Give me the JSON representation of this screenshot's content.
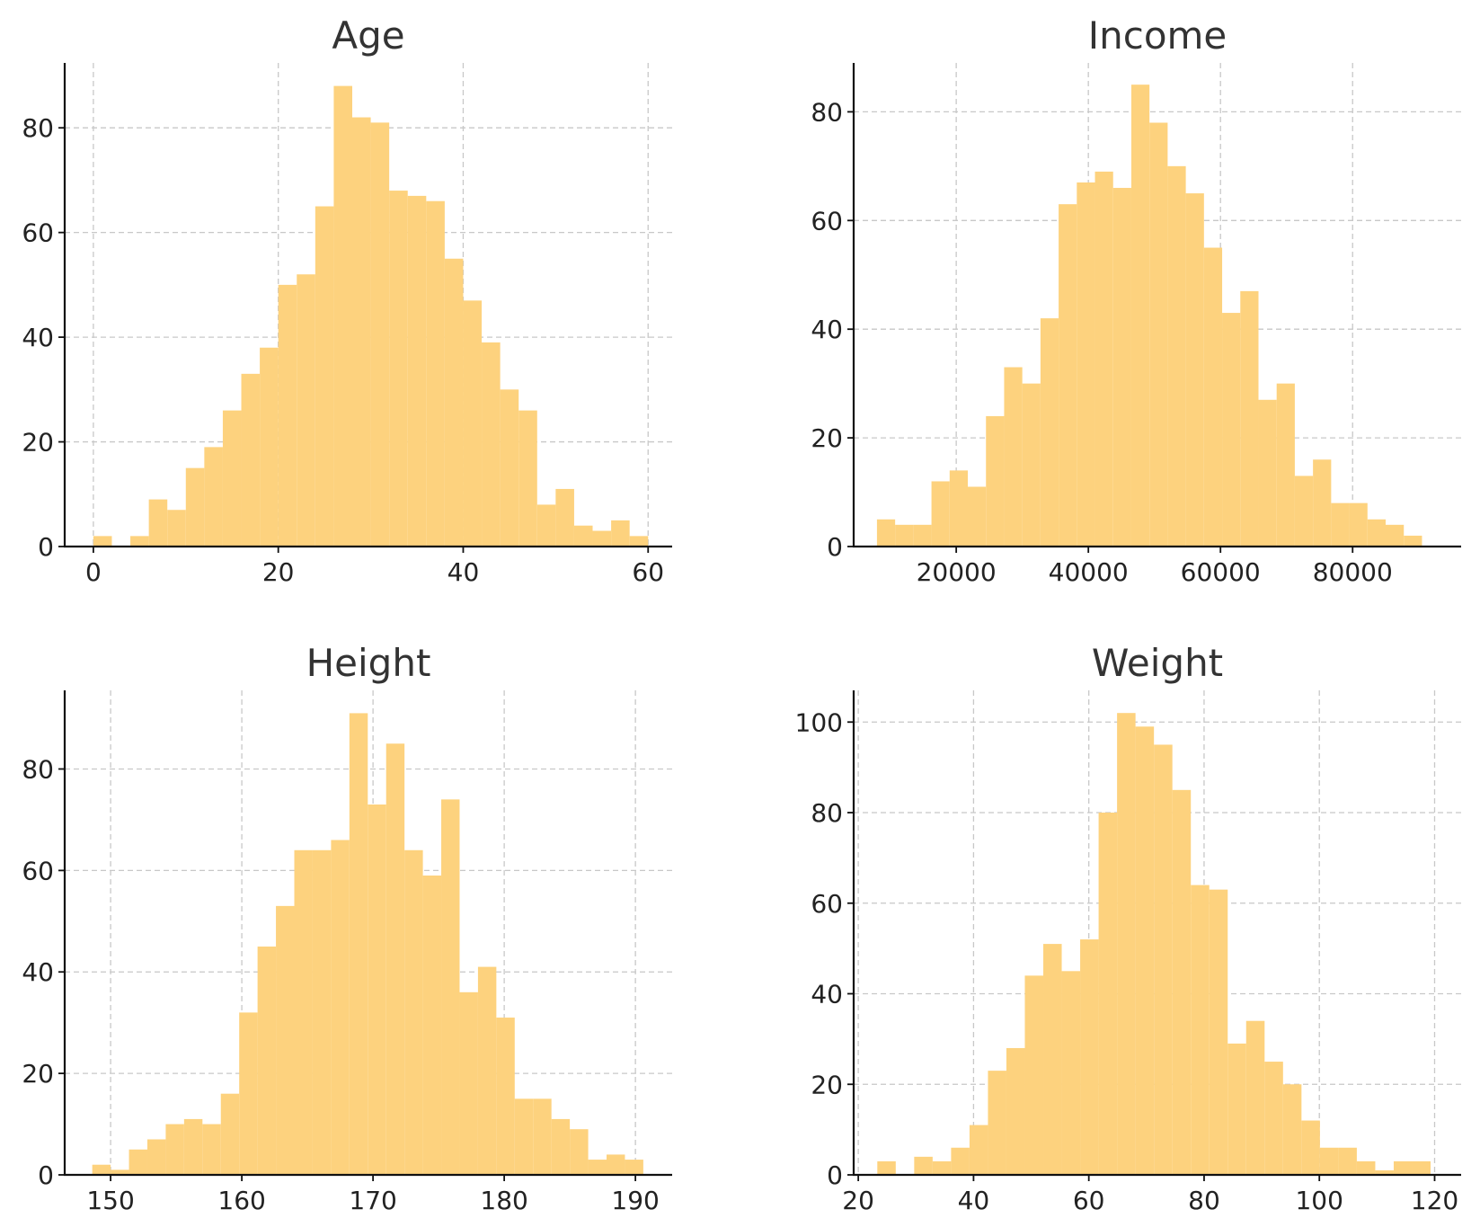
{
  "chart_data": [
    {
      "type": "bar",
      "title": "Age",
      "xlabel": "",
      "ylabel": "",
      "xlim": [
        -3.1,
        62.6
      ],
      "ylim": [
        0,
        92.4
      ],
      "bin_start": 0,
      "bin_width": 2,
      "counts": [
        2,
        0,
        2,
        9,
        7,
        15,
        19,
        26,
        33,
        38,
        50,
        52,
        65,
        88,
        82,
        81,
        68,
        67,
        66,
        55,
        47,
        39,
        30,
        26,
        8,
        11,
        4,
        3,
        5,
        2
      ],
      "xticks": [
        0,
        20,
        40,
        60
      ],
      "xtick_labels": [
        "0",
        "20",
        "40",
        "60"
      ],
      "yticks": [
        0,
        20,
        40,
        60,
        80
      ],
      "ytick_labels": [
        "0",
        "20",
        "40",
        "60",
        "80"
      ],
      "grid": true,
      "bar_color": "#fdd27e"
    },
    {
      "type": "bar",
      "title": "Income",
      "xlabel": "",
      "ylabel": "",
      "xlim": [
        4475,
        96425
      ],
      "ylim": [
        0,
        89
      ],
      "bin_start": 8000,
      "bin_width": 2750,
      "counts": [
        5,
        4,
        4,
        12,
        14,
        11,
        24,
        33,
        30,
        42,
        63,
        67,
        69,
        66,
        85,
        78,
        70,
        65,
        55,
        43,
        47,
        27,
        30,
        13,
        16,
        8,
        8,
        5,
        4,
        2
      ],
      "xticks": [
        20000,
        40000,
        60000,
        80000
      ],
      "xtick_labels": [
        "20000",
        "40000",
        "60000",
        "80000"
      ],
      "yticks": [
        0,
        20,
        40,
        60,
        80
      ],
      "ytick_labels": [
        "0",
        "20",
        "40",
        "60",
        "80"
      ],
      "grid": true,
      "bar_color": "#fdd27e"
    },
    {
      "type": "bar",
      "title": "Height",
      "xlabel": "",
      "ylabel": "",
      "xlim": [
        146.5,
        192.8
      ],
      "ylim": [
        0,
        95.5
      ],
      "bin_start": 148.6,
      "bin_width": 1.4,
      "counts": [
        2,
        1,
        5,
        7,
        10,
        11,
        10,
        16,
        32,
        45,
        53,
        64,
        64,
        66,
        91,
        73,
        85,
        64,
        59,
        74,
        36,
        41,
        31,
        15,
        15,
        11,
        9,
        3,
        4,
        3
      ],
      "xticks": [
        150,
        160,
        170,
        180,
        190
      ],
      "xtick_labels": [
        "150",
        "160",
        "170",
        "180",
        "190"
      ],
      "yticks": [
        0,
        20,
        40,
        60,
        80
      ],
      "ytick_labels": [
        "0",
        "20",
        "40",
        "60",
        "80"
      ],
      "grid": true,
      "bar_color": "#fdd27e"
    },
    {
      "type": "bar",
      "title": "Weight",
      "xlabel": "",
      "ylabel": "",
      "xlim": [
        19.2,
        124.6
      ],
      "ylim": [
        0,
        107
      ],
      "bin_start": 23.3,
      "bin_width": 3.2,
      "counts": [
        3,
        0,
        4,
        3,
        6,
        11,
        23,
        28,
        44,
        51,
        45,
        52,
        80,
        102,
        99,
        95,
        85,
        64,
        63,
        29,
        34,
        25,
        20,
        12,
        6,
        6,
        3,
        1,
        3,
        3
      ],
      "xticks": [
        20,
        40,
        60,
        80,
        100,
        120
      ],
      "xtick_labels": [
        "20",
        "40",
        "60",
        "80",
        "100",
        "120"
      ],
      "yticks": [
        0,
        20,
        40,
        60,
        80,
        100
      ],
      "ytick_labels": [
        "0",
        "20",
        "40",
        "60",
        "80",
        "100"
      ],
      "grid": true,
      "bar_color": "#fdd27e"
    }
  ]
}
